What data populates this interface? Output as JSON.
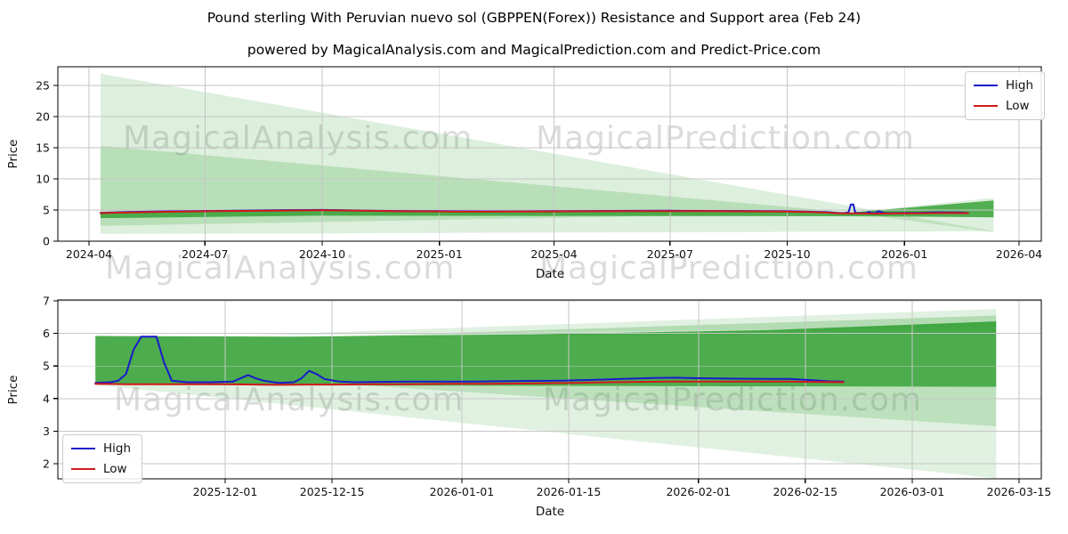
{
  "figure": {
    "title": "Pound sterling With Peruvian nuevo sol (GBPPEN(Forex)) Resistance and Support area (Feb 24)",
    "subtitle": "powered by MagicalAnalysis.com and MagicalPrediction.com and Predict-Price.com",
    "background": "#ffffff"
  },
  "colors": {
    "high": "#1a1acb",
    "low": "#d11a1a",
    "band_green": "#2e9e2e",
    "grid": "#c6c6c6",
    "spine": "#000000",
    "text": "#111111",
    "watermark": "#8a8a8a"
  },
  "watermarks": [
    {
      "text": "MagicalAnalysis.com"
    },
    {
      "text": "MagicalPrediction.com"
    },
    {
      "text": "MagicalAnalysis.com"
    },
    {
      "text": "MagicalPrediction.com"
    },
    {
      "text": "MagicalAnalysis.com"
    },
    {
      "text": "MagicalPrediction.com"
    }
  ],
  "chart_data": [
    {
      "type": "line",
      "xlabel": "Date",
      "ylabel": "Price",
      "ylim": [
        0,
        28
      ],
      "grid": true,
      "y_ticks": [
        0,
        5,
        10,
        15,
        20,
        25
      ],
      "x_ticks": [
        {
          "date": "2024-04-01",
          "label": "2024-04"
        },
        {
          "date": "2024-07-01",
          "label": "2024-07"
        },
        {
          "date": "2024-10-01",
          "label": "2024-10"
        },
        {
          "date": "2025-01-01",
          "label": "2025-01"
        },
        {
          "date": "2025-04-01",
          "label": "2025-04"
        },
        {
          "date": "2025-07-01",
          "label": "2025-07"
        },
        {
          "date": "2025-10-01",
          "label": "2025-10"
        },
        {
          "date": "2026-01-01",
          "label": "2026-01"
        },
        {
          "date": "2026-04-01",
          "label": "2026-04"
        }
      ],
      "legend": {
        "position": "upper right",
        "entries": [
          "High",
          "Low"
        ]
      },
      "bands": [
        {
          "name": "outer-fan-left",
          "opacity": 0.16,
          "points": [
            [
              "2024-04-10",
              26.9
            ],
            [
              "2026-03-12",
              1.6
            ],
            [
              "2024-04-10",
              1.15
            ]
          ]
        },
        {
          "name": "mid-fan-left",
          "opacity": 0.2,
          "points": [
            [
              "2024-04-10",
              15.3
            ],
            [
              "2025-11-20",
              4.6
            ],
            [
              "2024-04-10",
              2.45
            ]
          ]
        },
        {
          "name": "fan-right",
          "opacity": 0.16,
          "points": [
            [
              "2025-11-20",
              4.6
            ],
            [
              "2026-03-12",
              6.95
            ],
            [
              "2026-03-12",
              1.45
            ]
          ]
        },
        {
          "name": "support-resistance-band",
          "opacity": 0.8,
          "points": [
            [
              "2024-04-10",
              4.52
            ],
            [
              "2024-10-01",
              4.88
            ],
            [
              "2025-06-01",
              4.75
            ],
            [
              "2025-11-20",
              4.6
            ],
            [
              "2026-03-12",
              6.55
            ],
            [
              "2026-03-12",
              3.85
            ],
            [
              "2025-11-20",
              4.0
            ],
            [
              "2024-10-01",
              4.1
            ],
            [
              "2024-04-10",
              3.7
            ]
          ]
        }
      ],
      "series": [
        {
          "name": "High",
          "color_key": "high",
          "points": [
            [
              "2024-04-10",
              4.55
            ],
            [
              "2024-05-01",
              4.68
            ],
            [
              "2024-06-01",
              4.78
            ],
            [
              "2024-07-01",
              4.85
            ],
            [
              "2024-08-01",
              4.92
            ],
            [
              "2024-09-01",
              4.98
            ],
            [
              "2024-10-01",
              5.02
            ],
            [
              "2024-10-15",
              4.98
            ],
            [
              "2024-11-01",
              4.92
            ],
            [
              "2024-12-01",
              4.85
            ],
            [
              "2025-01-01",
              4.82
            ],
            [
              "2025-02-01",
              4.78
            ],
            [
              "2025-03-01",
              4.78
            ],
            [
              "2025-04-01",
              4.82
            ],
            [
              "2025-05-01",
              4.85
            ],
            [
              "2025-06-01",
              4.87
            ],
            [
              "2025-07-01",
              4.88
            ],
            [
              "2025-08-01",
              4.86
            ],
            [
              "2025-09-01",
              4.84
            ],
            [
              "2025-10-01",
              4.8
            ],
            [
              "2025-10-15",
              4.75
            ],
            [
              "2025-11-01",
              4.65
            ],
            [
              "2025-11-10",
              4.52
            ],
            [
              "2025-11-14",
              4.48
            ],
            [
              "2025-11-18",
              4.6
            ],
            [
              "2025-11-19",
              5.2
            ],
            [
              "2025-11-20",
              5.9
            ],
            [
              "2025-11-22",
              5.9
            ],
            [
              "2025-11-23",
              4.9
            ],
            [
              "2025-11-24",
              4.55
            ],
            [
              "2025-11-28",
              4.5
            ],
            [
              "2025-12-02",
              4.52
            ],
            [
              "2025-12-04",
              4.72
            ],
            [
              "2025-12-06",
              4.55
            ],
            [
              "2025-12-09",
              4.48
            ],
            [
              "2025-12-12",
              4.85
            ],
            [
              "2025-12-14",
              4.65
            ],
            [
              "2025-12-16",
              4.52
            ],
            [
              "2025-12-20",
              4.5
            ],
            [
              "2025-12-28",
              4.52
            ],
            [
              "2026-01-05",
              4.53
            ],
            [
              "2026-01-12",
              4.55
            ],
            [
              "2026-01-20",
              4.58
            ],
            [
              "2026-01-26",
              4.63
            ],
            [
              "2026-02-01",
              4.62
            ],
            [
              "2026-02-08",
              4.6
            ],
            [
              "2026-02-14",
              4.58
            ],
            [
              "2026-02-20",
              4.55
            ]
          ]
        },
        {
          "name": "Low",
          "color_key": "low",
          "points": [
            [
              "2024-04-10",
              4.5
            ],
            [
              "2024-05-01",
              4.62
            ],
            [
              "2024-06-01",
              4.72
            ],
            [
              "2024-07-01",
              4.8
            ],
            [
              "2024-08-01",
              4.86
            ],
            [
              "2024-09-01",
              4.92
            ],
            [
              "2024-10-01",
              4.96
            ],
            [
              "2024-10-15",
              4.93
            ],
            [
              "2024-11-01",
              4.88
            ],
            [
              "2024-12-01",
              4.8
            ],
            [
              "2025-01-01",
              4.77
            ],
            [
              "2025-02-01",
              4.73
            ],
            [
              "2025-03-01",
              4.74
            ],
            [
              "2025-04-01",
              4.77
            ],
            [
              "2025-05-01",
              4.8
            ],
            [
              "2025-06-01",
              4.82
            ],
            [
              "2025-07-01",
              4.83
            ],
            [
              "2025-08-01",
              4.81
            ],
            [
              "2025-09-01",
              4.79
            ],
            [
              "2025-10-01",
              4.75
            ],
            [
              "2025-10-15",
              4.7
            ],
            [
              "2025-11-01",
              4.58
            ],
            [
              "2025-11-10",
              4.46
            ],
            [
              "2025-11-14",
              4.45
            ],
            [
              "2025-12-01",
              4.44
            ],
            [
              "2025-12-08",
              4.42
            ],
            [
              "2025-12-15",
              4.43
            ],
            [
              "2025-12-22",
              4.44
            ],
            [
              "2026-01-01",
              4.45
            ],
            [
              "2026-01-10",
              4.46
            ],
            [
              "2026-01-20",
              4.5
            ],
            [
              "2026-02-01",
              4.52
            ],
            [
              "2026-02-10",
              4.52
            ],
            [
              "2026-02-20",
              4.5
            ]
          ]
        }
      ]
    },
    {
      "type": "line",
      "xlabel": "Date",
      "ylabel": "Price",
      "ylim": [
        1.5,
        7
      ],
      "grid": true,
      "y_ticks": [
        2,
        3,
        4,
        5,
        6,
        7
      ],
      "x_ticks": [
        {
          "date": "2025-12-01",
          "label": "2025-12-01"
        },
        {
          "date": "2025-12-15",
          "label": "2025-12-15"
        },
        {
          "date": "2026-01-01",
          "label": "2026-01-01"
        },
        {
          "date": "2026-01-15",
          "label": "2026-01-15"
        },
        {
          "date": "2026-02-01",
          "label": "2026-02-01"
        },
        {
          "date": "2026-02-15",
          "label": "2026-02-15"
        },
        {
          "date": "2026-03-01",
          "label": "2026-03-01"
        },
        {
          "date": "2026-03-15",
          "label": "2026-03-15"
        }
      ],
      "legend": {
        "position": "lower left",
        "entries": [
          "High",
          "Low"
        ]
      },
      "bands": [
        {
          "name": "upper-fan-outer",
          "opacity": 0.14,
          "points": [
            [
              "2025-12-01",
              5.92
            ],
            [
              "2026-03-12",
              6.75
            ],
            [
              "2026-03-12",
              6.2
            ]
          ]
        },
        {
          "name": "upper-fan-mid",
          "opacity": 0.25,
          "points": [
            [
              "2025-12-15",
              5.9
            ],
            [
              "2026-03-12",
              6.55
            ],
            [
              "2026-03-12",
              6.0
            ]
          ]
        },
        {
          "name": "lower-fan-outer",
          "opacity": 0.14,
          "points": [
            [
              "2025-11-14",
              4.42
            ],
            [
              "2026-03-12",
              4.36
            ],
            [
              "2026-03-12",
              1.55
            ]
          ]
        },
        {
          "name": "lower-fan-mid",
          "opacity": 0.2,
          "points": [
            [
              "2025-12-18",
              4.42
            ],
            [
              "2026-03-12",
              4.36
            ],
            [
              "2026-03-12",
              3.15
            ]
          ]
        },
        {
          "name": "main-resistance-band",
          "opacity": 0.85,
          "points": [
            [
              "2025-11-14",
              5.92
            ],
            [
              "2025-12-10",
              5.9
            ],
            [
              "2026-01-10",
              5.97
            ],
            [
              "2026-02-10",
              6.1
            ],
            [
              "2026-03-12",
              6.37
            ],
            [
              "2026-03-12",
              4.36
            ],
            [
              "2025-11-14",
              4.42
            ]
          ]
        }
      ],
      "series": [
        {
          "name": "High",
          "color_key": "high",
          "points": [
            [
              "2025-11-14",
              4.48
            ],
            [
              "2025-11-16",
              4.5
            ],
            [
              "2025-11-17",
              4.55
            ],
            [
              "2025-11-18",
              4.75
            ],
            [
              "2025-11-19",
              5.5
            ],
            [
              "2025-11-20",
              5.9
            ],
            [
              "2025-11-22",
              5.9
            ],
            [
              "2025-11-23",
              5.1
            ],
            [
              "2025-11-24",
              4.55
            ],
            [
              "2025-11-26",
              4.5
            ],
            [
              "2025-11-29",
              4.5
            ],
            [
              "2025-12-02",
              4.52
            ],
            [
              "2025-12-04",
              4.72
            ],
            [
              "2025-12-05",
              4.62
            ],
            [
              "2025-12-06",
              4.55
            ],
            [
              "2025-12-08",
              4.48
            ],
            [
              "2025-12-10",
              4.5
            ],
            [
              "2025-12-11",
              4.62
            ],
            [
              "2025-12-12",
              4.85
            ],
            [
              "2025-12-13",
              4.75
            ],
            [
              "2025-12-14",
              4.6
            ],
            [
              "2025-12-16",
              4.52
            ],
            [
              "2025-12-18",
              4.5
            ],
            [
              "2025-12-21",
              4.51
            ],
            [
              "2025-12-25",
              4.52
            ],
            [
              "2025-12-29",
              4.52
            ],
            [
              "2026-01-02",
              4.52
            ],
            [
              "2026-01-06",
              4.53
            ],
            [
              "2026-01-10",
              4.54
            ],
            [
              "2026-01-14",
              4.55
            ],
            [
              "2026-01-18",
              4.57
            ],
            [
              "2026-01-22",
              4.6
            ],
            [
              "2026-01-26",
              4.63
            ],
            [
              "2026-01-29",
              4.64
            ],
            [
              "2026-02-02",
              4.62
            ],
            [
              "2026-02-06",
              4.61
            ],
            [
              "2026-02-10",
              4.6
            ],
            [
              "2026-02-13",
              4.6
            ],
            [
              "2026-02-16",
              4.56
            ],
            [
              "2026-02-18",
              4.53
            ],
            [
              "2026-02-20",
              4.52
            ]
          ]
        },
        {
          "name": "Low",
          "color_key": "low",
          "points": [
            [
              "2025-11-14",
              4.45
            ],
            [
              "2025-11-18",
              4.44
            ],
            [
              "2025-11-22",
              4.44
            ],
            [
              "2025-11-26",
              4.44
            ],
            [
              "2025-12-01",
              4.44
            ],
            [
              "2025-12-05",
              4.43
            ],
            [
              "2025-12-08",
              4.42
            ],
            [
              "2025-12-12",
              4.43
            ],
            [
              "2025-12-16",
              4.43
            ],
            [
              "2025-12-20",
              4.44
            ],
            [
              "2025-12-25",
              4.44
            ],
            [
              "2025-12-30",
              4.45
            ],
            [
              "2026-01-04",
              4.45
            ],
            [
              "2026-01-08",
              4.46
            ],
            [
              "2026-01-12",
              4.47
            ],
            [
              "2026-01-16",
              4.48
            ],
            [
              "2026-01-20",
              4.5
            ],
            [
              "2026-01-24",
              4.51
            ],
            [
              "2026-01-28",
              4.52
            ],
            [
              "2026-02-01",
              4.52
            ],
            [
              "2026-02-05",
              4.52
            ],
            [
              "2026-02-09",
              4.52
            ],
            [
              "2026-02-13",
              4.52
            ],
            [
              "2026-02-16",
              4.51
            ],
            [
              "2026-02-20",
              4.5
            ]
          ]
        }
      ]
    }
  ]
}
